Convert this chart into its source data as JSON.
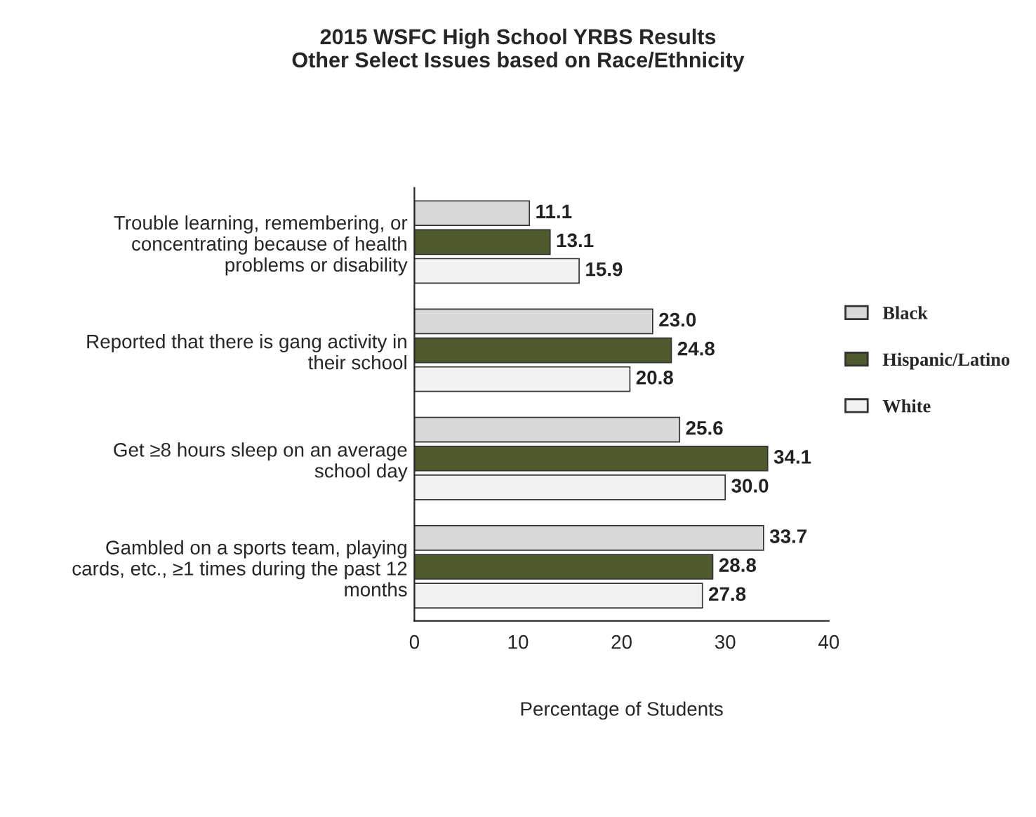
{
  "chart_data": {
    "type": "bar",
    "orientation": "horizontal",
    "title": "2015 WSFC High School YRBS Results\nOther Select Issues based on Race/Ethnicity",
    "xlabel": "Percentage of Students",
    "categories": [
      "Trouble learning, remembering, or\nconcentrating because of health\nproblems or disability",
      "Reported that there is gang activity in\ntheir school",
      "Get ≥8 hours sleep on an average\nschool day",
      "Gambled on a sports team, playing\ncards, etc., ≥1 times during the past 12\nmonths"
    ],
    "series": [
      {
        "name": "Black",
        "color": "#d9d9d9",
        "values": [
          11.1,
          23.0,
          25.6,
          33.7
        ],
        "value_labels": [
          "11.1",
          "23.0",
          "25.6",
          "33.7"
        ]
      },
      {
        "name": "Hispanic/Latino",
        "color": "#4f5b2e",
        "values": [
          13.1,
          24.8,
          34.1,
          28.8
        ],
        "value_labels": [
          "13.1",
          "24.8",
          "34.1",
          "28.8"
        ]
      },
      {
        "name": "White",
        "color": "#f2f2f2",
        "values": [
          15.9,
          20.8,
          30.0,
          27.8
        ],
        "value_labels": [
          "15.9",
          "20.8",
          "30.0",
          "27.8"
        ]
      }
    ],
    "xlim": [
      0,
      40
    ],
    "xticks": [
      0,
      10,
      20,
      30,
      40
    ],
    "grid": false,
    "legend": "right"
  }
}
